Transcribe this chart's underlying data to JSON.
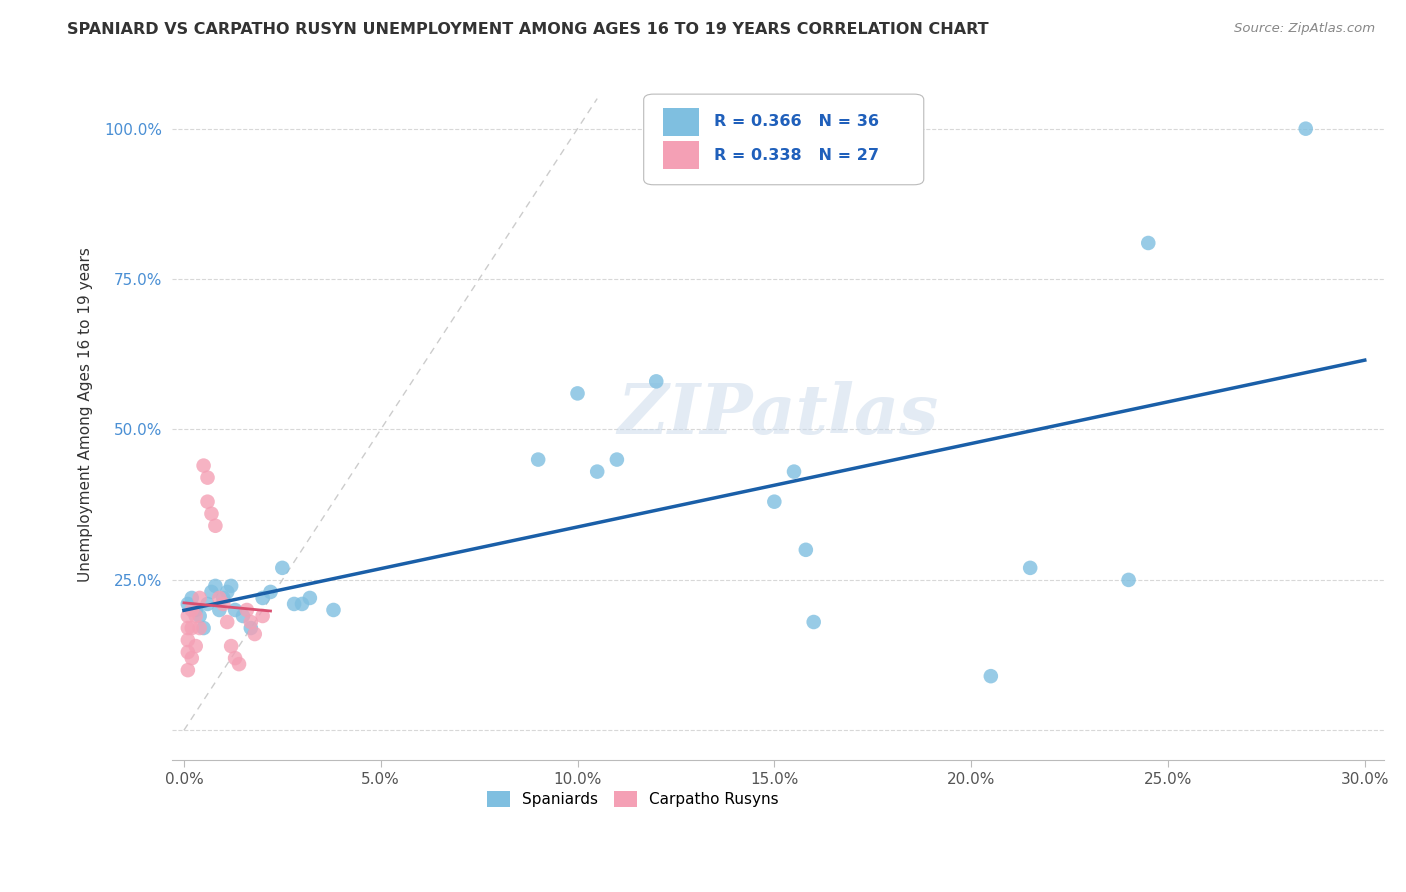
{
  "title": "SPANIARD VS CARPATHO RUSYN UNEMPLOYMENT AMONG AGES 16 TO 19 YEARS CORRELATION CHART",
  "source": "Source: ZipAtlas.com",
  "ylabel": "Unemployment Among Ages 16 to 19 years",
  "xlim": [
    -0.003,
    0.305
  ],
  "ylim": [
    -0.05,
    1.1
  ],
  "xticks": [
    0.0,
    0.05,
    0.1,
    0.15,
    0.2,
    0.25,
    0.3
  ],
  "yticks": [
    0.0,
    0.25,
    0.5,
    0.75,
    1.0
  ],
  "xtick_labels": [
    "0.0%",
    "5.0%",
    "10.0%",
    "15.0%",
    "20.0%",
    "25.0%",
    "30.0%"
  ],
  "ytick_labels": [
    "",
    "25.0%",
    "50.0%",
    "75.0%",
    "100.0%"
  ],
  "spaniard_color": "#7fbfe0",
  "carpatho_color": "#f4a0b5",
  "trend_blue": "#1a5fa8",
  "trend_pink": "#d94f70",
  "watermark": "ZIPatlas",
  "spaniard_x": [
    0.001,
    0.002,
    0.003,
    0.004,
    0.005,
    0.006,
    0.007,
    0.008,
    0.009,
    0.01,
    0.011,
    0.012,
    0.013,
    0.015,
    0.017,
    0.02,
    0.022,
    0.025,
    0.028,
    0.03,
    0.032,
    0.038,
    0.09,
    0.1,
    0.105,
    0.11,
    0.12,
    0.15,
    0.158,
    0.155,
    0.16,
    0.205,
    0.215,
    0.24,
    0.245,
    0.285
  ],
  "spaniard_y": [
    0.21,
    0.22,
    0.2,
    0.19,
    0.17,
    0.21,
    0.23,
    0.24,
    0.2,
    0.22,
    0.23,
    0.24,
    0.2,
    0.19,
    0.17,
    0.22,
    0.23,
    0.27,
    0.21,
    0.21,
    0.22,
    0.2,
    0.45,
    0.56,
    0.43,
    0.45,
    0.58,
    0.38,
    0.3,
    0.43,
    0.18,
    0.09,
    0.27,
    0.25,
    0.81,
    1.0
  ],
  "carpatho_x": [
    0.001,
    0.001,
    0.001,
    0.001,
    0.001,
    0.002,
    0.002,
    0.002,
    0.003,
    0.003,
    0.004,
    0.004,
    0.005,
    0.006,
    0.006,
    0.007,
    0.008,
    0.009,
    0.01,
    0.011,
    0.012,
    0.013,
    0.014,
    0.016,
    0.017,
    0.018,
    0.02
  ],
  "carpatho_y": [
    0.19,
    0.17,
    0.15,
    0.13,
    0.1,
    0.2,
    0.17,
    0.12,
    0.19,
    0.14,
    0.22,
    0.17,
    0.44,
    0.42,
    0.38,
    0.36,
    0.34,
    0.22,
    0.21,
    0.18,
    0.14,
    0.12,
    0.11,
    0.2,
    0.18,
    0.16,
    0.19
  ]
}
